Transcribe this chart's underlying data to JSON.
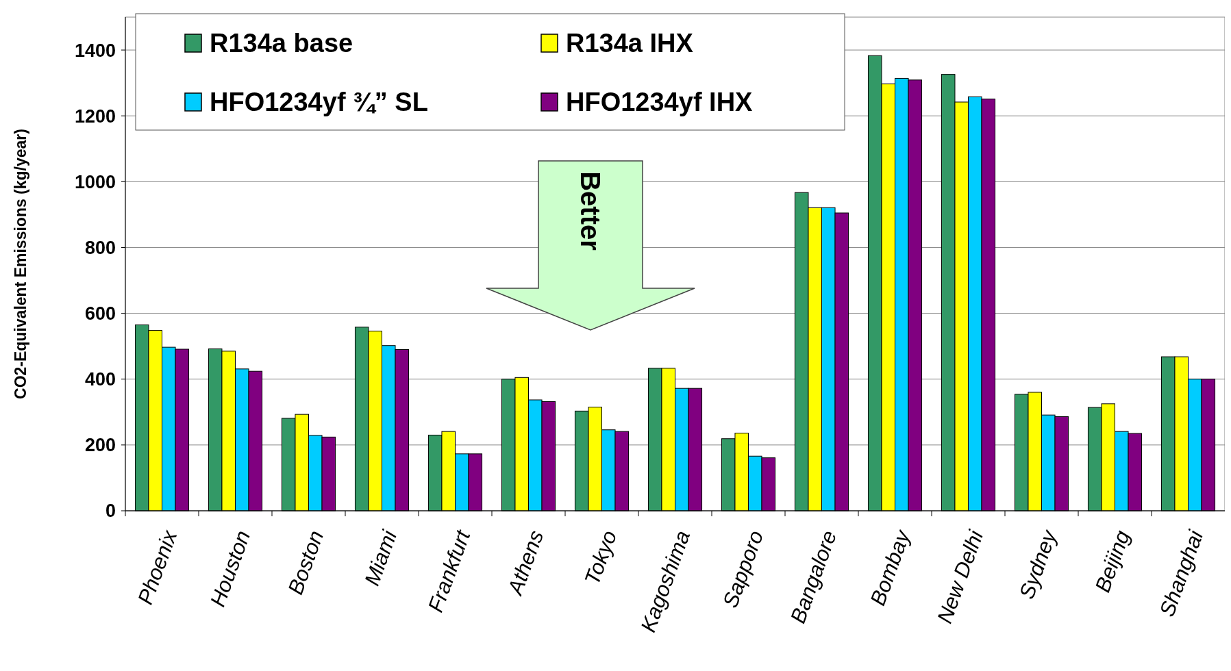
{
  "chart_data": {
    "type": "bar",
    "ylabel": "CO2-Equivalent Emissions (kg/year)",
    "categories": [
      "Phoenix",
      "Houston",
      "Boston",
      "Miami",
      "Frankfurt",
      "Athens",
      "Tokyo",
      "Kagoshima",
      "Sapporo",
      "Bangalore",
      "Bombay",
      "New Delhi",
      "Sydney",
      "Beijing",
      "Shanghai"
    ],
    "series": [
      {
        "name": "R134a base",
        "color": "#339966",
        "values": [
          565,
          492,
          281,
          558,
          230,
          400,
          303,
          433,
          219,
          967,
          1383,
          1326,
          354,
          314,
          468
        ]
      },
      {
        "name": "R134a IHX",
        "color": "#ffff00",
        "values": [
          548,
          485,
          293,
          546,
          241,
          405,
          315,
          433,
          236,
          921,
          1297,
          1242,
          360,
          325,
          468
        ]
      },
      {
        "name": "HFO1234yf ¾” SL",
        "color": "#00ccff",
        "values": [
          497,
          431,
          229,
          502,
          173,
          337,
          246,
          372,
          166,
          921,
          1314,
          1258,
          291,
          241,
          400
        ]
      },
      {
        "name": "HFO1234yf IHX",
        "color": "#800080",
        "values": [
          491,
          424,
          224,
          490,
          173,
          332,
          241,
          372,
          161,
          905,
          1309,
          1251,
          286,
          235,
          400
        ]
      }
    ],
    "ylim": [
      0,
      1500
    ],
    "yticks": [
      0,
      200,
      400,
      600,
      800,
      1000,
      1200,
      1400
    ],
    "grid": "y",
    "legend": "top left",
    "annotations": [
      "Better"
    ]
  }
}
